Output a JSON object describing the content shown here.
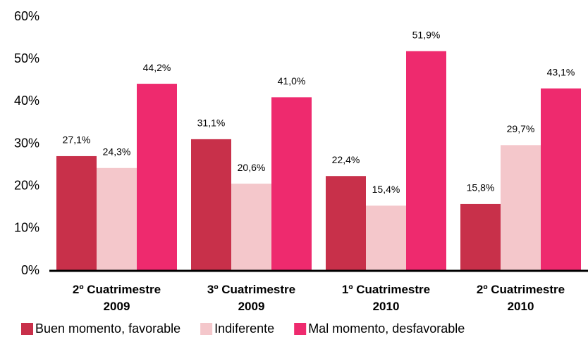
{
  "chart_data": {
    "type": "bar",
    "categories": [
      "2º Cuatrimestre 2009",
      "3º Cuatrimestre 2009",
      "1º Cuatrimestre 2010",
      "2º Cuatrimestre 2010"
    ],
    "series": [
      {
        "name": "Buen momento, favorable",
        "color": "#c8304a",
        "values": [
          27.1,
          31.1,
          22.4,
          15.8
        ],
        "value_labels": [
          "27,1%",
          "31,1%",
          "22,4%",
          "15,8%"
        ]
      },
      {
        "name": "Indiferente",
        "color": "#f4c7cb",
        "values": [
          24.3,
          20.6,
          15.4,
          29.7
        ],
        "value_labels": [
          "24,3%",
          "20,6%",
          "15,4%",
          "29,7%"
        ]
      },
      {
        "name": "Mal momento, desfavorable",
        "color": "#ee2a6e",
        "values": [
          44.2,
          41.0,
          51.9,
          43.1
        ],
        "value_labels": [
          "44,2%",
          "41,0%",
          "51,9%",
          "43,1%"
        ]
      }
    ],
    "ylim": [
      0,
      60
    ],
    "yticks": [
      {
        "value": 0,
        "label": "0%"
      },
      {
        "value": 10,
        "label": "10%"
      },
      {
        "value": 20,
        "label": "20%"
      },
      {
        "value": 30,
        "label": "30%"
      },
      {
        "value": 40,
        "label": "40%"
      },
      {
        "value": 50,
        "label": "50%"
      },
      {
        "value": 60,
        "label": "60%"
      }
    ],
    "legend": "bottom",
    "grid": false
  }
}
